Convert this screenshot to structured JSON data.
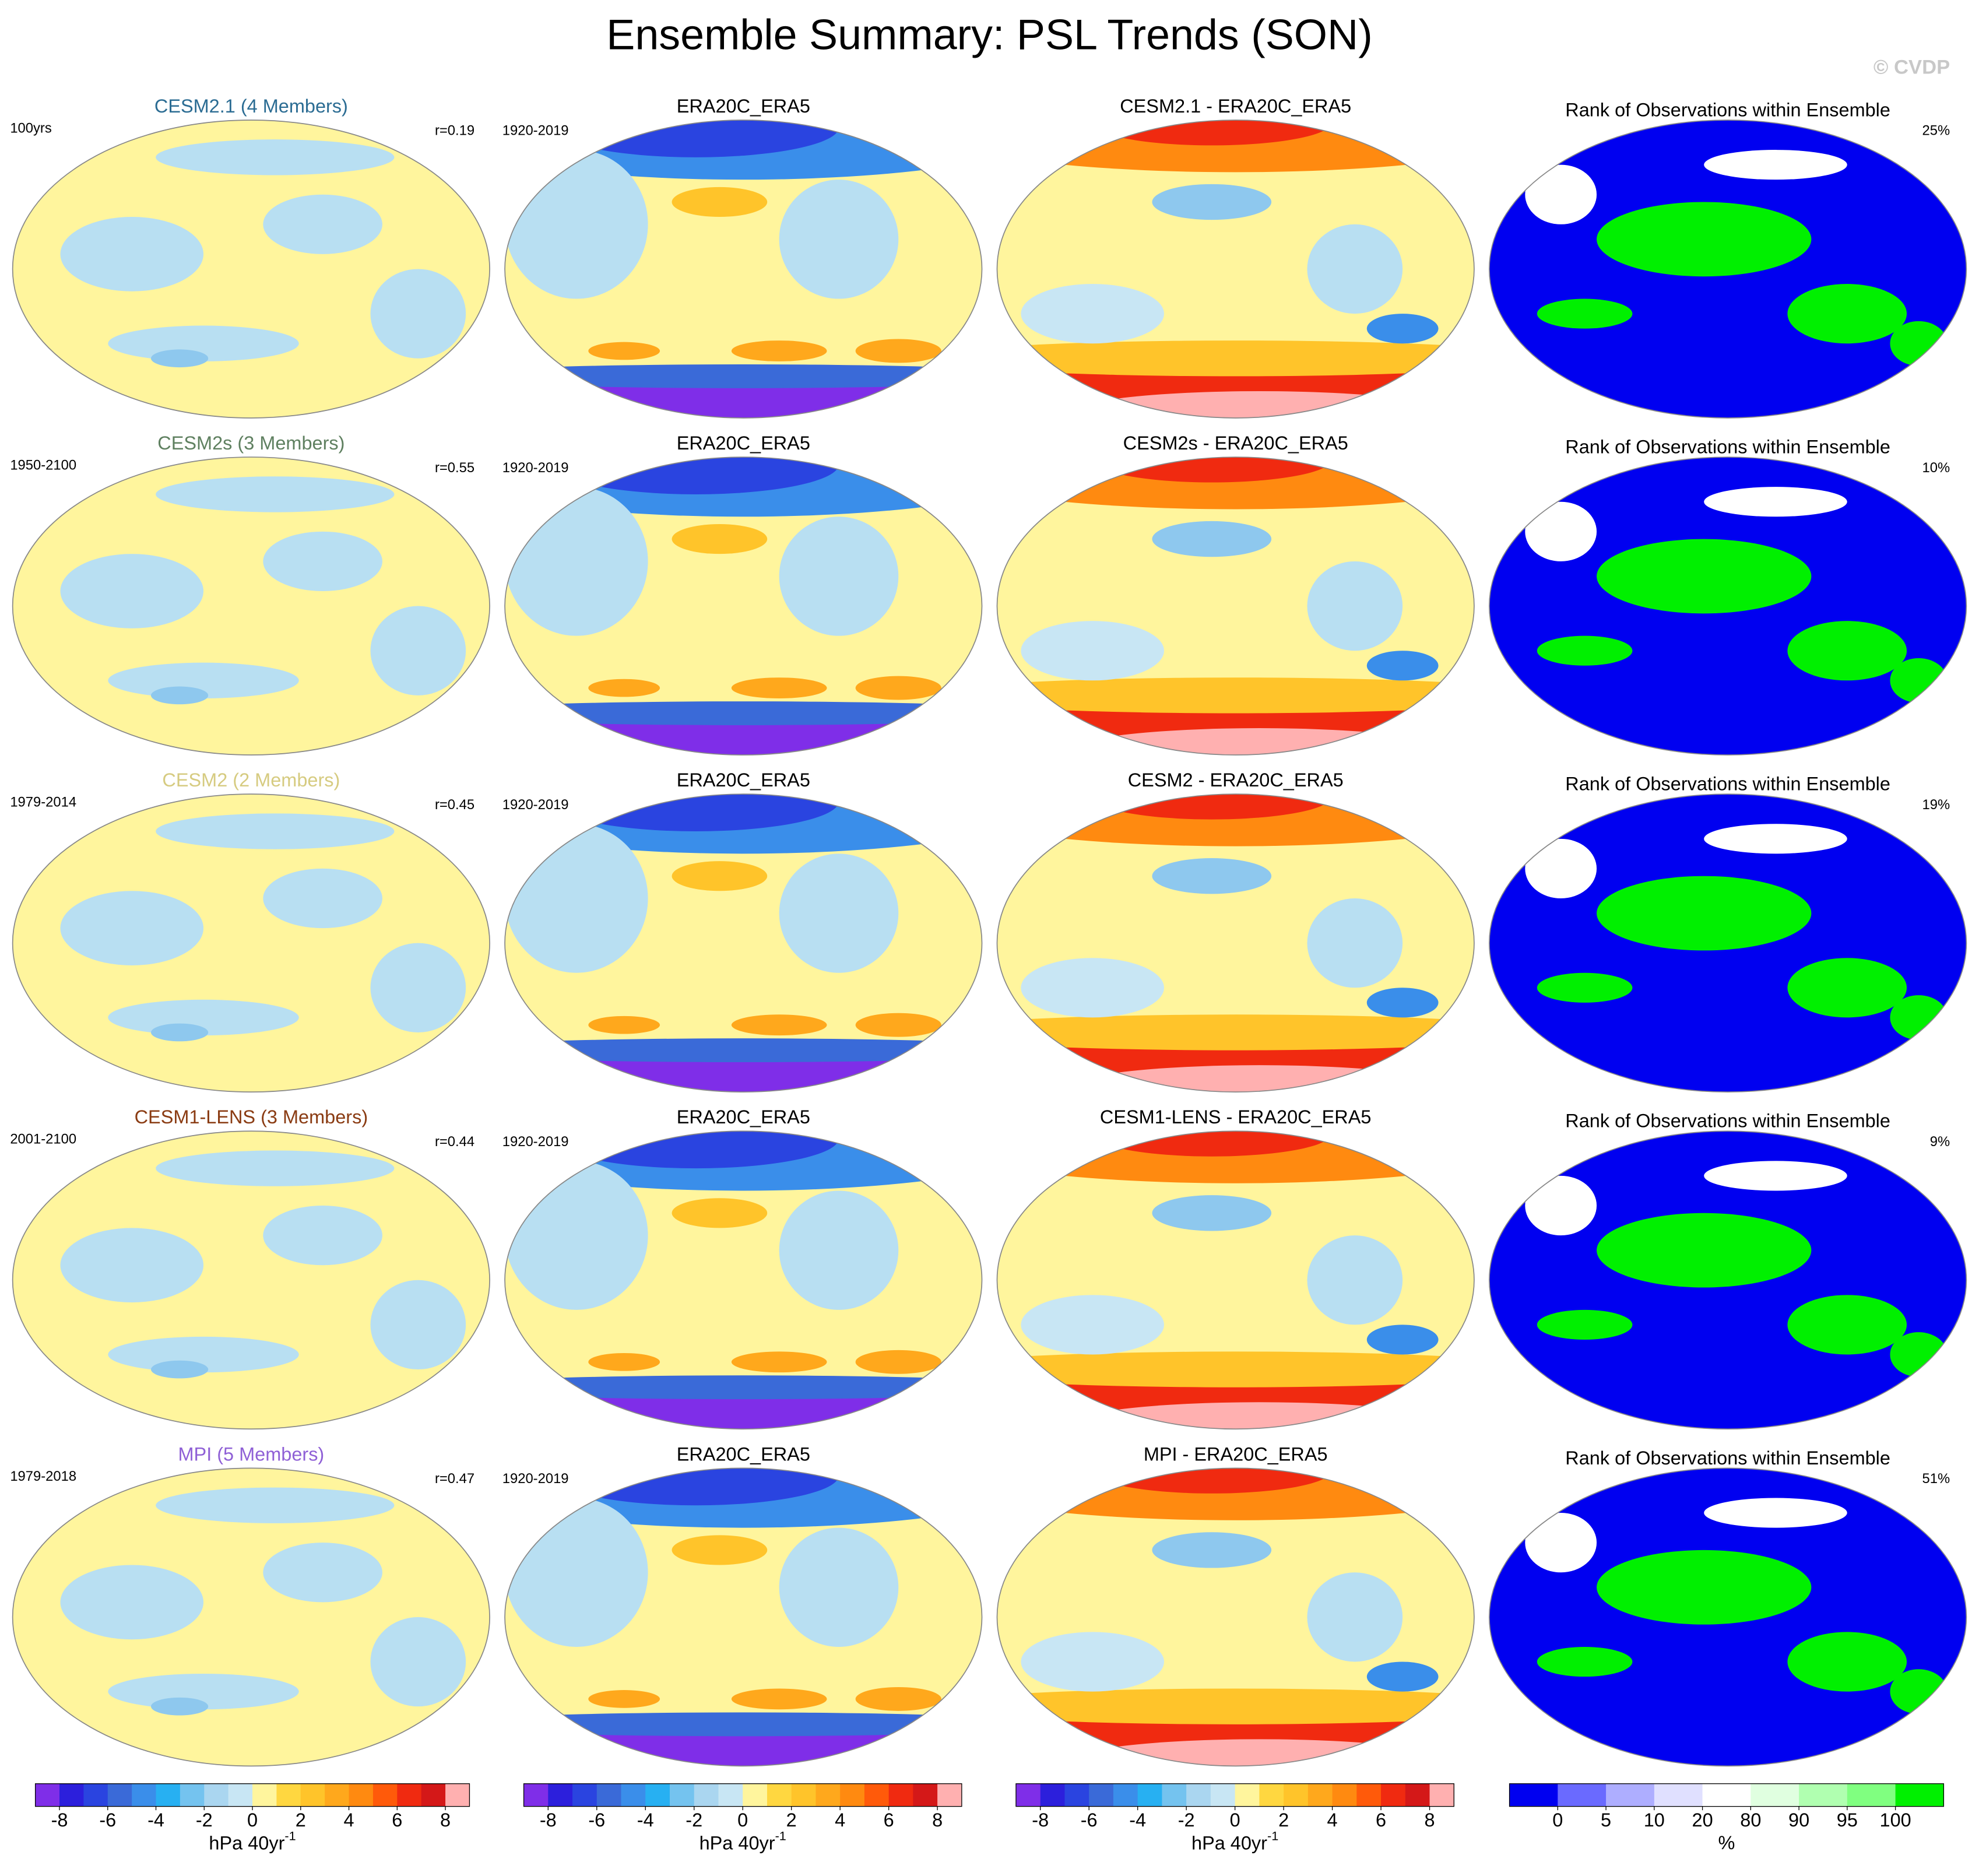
{
  "title": "Ensemble Summary: PSL Trends (SON)",
  "credit": "© CVDP",
  "rows": [
    {
      "model_title": "CESM2.1 (4 Members)",
      "title_color": "#2b6c93",
      "period": "100yrs",
      "corr": "r=0.19",
      "obs_period": "1920-2019",
      "obs_title": "ERA20C_ERA5",
      "diff_title": "CESM2.1 - ERA20C_ERA5",
      "rank_title": "Rank of Observations within Ensemble",
      "rank_pct": "25%"
    },
    {
      "model_title": "CESM2s (3 Members)",
      "title_color": "#5f8060",
      "period": "1950-2100",
      "corr": "r=0.55",
      "obs_period": "1920-2019",
      "obs_title": "ERA20C_ERA5",
      "diff_title": "CESM2s - ERA20C_ERA5",
      "rank_title": "Rank of Observations within Ensemble",
      "rank_pct": "10%"
    },
    {
      "model_title": "CESM2 (2 Members)",
      "title_color": "#d6cb80",
      "period": "1979-2014",
      "corr": "r=0.45",
      "obs_period": "1920-2019",
      "obs_title": "ERA20C_ERA5",
      "diff_title": "CESM2 - ERA20C_ERA5",
      "rank_title": "Rank of Observations within Ensemble",
      "rank_pct": "19%"
    },
    {
      "model_title": "CESM1-LENS (3 Members)",
      "title_color": "#8a3b12",
      "period": "2001-2100",
      "corr": "r=0.44",
      "obs_period": "1920-2019",
      "obs_title": "ERA20C_ERA5",
      "diff_title": "CESM1-LENS - ERA20C_ERA5",
      "rank_title": "Rank of Observations within Ensemble",
      "rank_pct": "9%"
    },
    {
      "model_title": "MPI (5 Members)",
      "title_color": "#8f60d6",
      "period": "1979-2018",
      "corr": "r=0.47",
      "obs_period": "1920-2019",
      "obs_title": "ERA20C_ERA5",
      "diff_title": "MPI - ERA20C_ERA5",
      "rank_title": "Rank of Observations within Ensemble",
      "rank_pct": "51%"
    }
  ],
  "trend_colorbar": {
    "colors": [
      "#7f2ee8",
      "#2c1fdc",
      "#2a44e0",
      "#3a6ad8",
      "#3a8eea",
      "#27b0f2",
      "#74c3ef",
      "#aad6f0",
      "#c8e6f4",
      "#fff59d",
      "#ffd740",
      "#ffc42a",
      "#ffa81c",
      "#ff8a10",
      "#ff5a0a",
      "#f02a10",
      "#d41818",
      "#ffb0b0"
    ],
    "lim": [
      -9,
      9
    ],
    "ticks": [
      -8,
      -6,
      -4,
      -2,
      0,
      2,
      4,
      6,
      8
    ],
    "unit": "hPa 40yr",
    "unit_sup": "-1"
  },
  "rank_colorbar": {
    "colors": [
      "#0000f0",
      "#6a6aff",
      "#aeaeff",
      "#e0e0ff",
      "#ffffff",
      "#e0ffe0",
      "#b0ffb0",
      "#80ff80",
      "#00f000"
    ],
    "ticks": [
      0,
      5,
      10,
      20,
      80,
      90,
      95,
      100
    ],
    "unit": "%"
  }
}
